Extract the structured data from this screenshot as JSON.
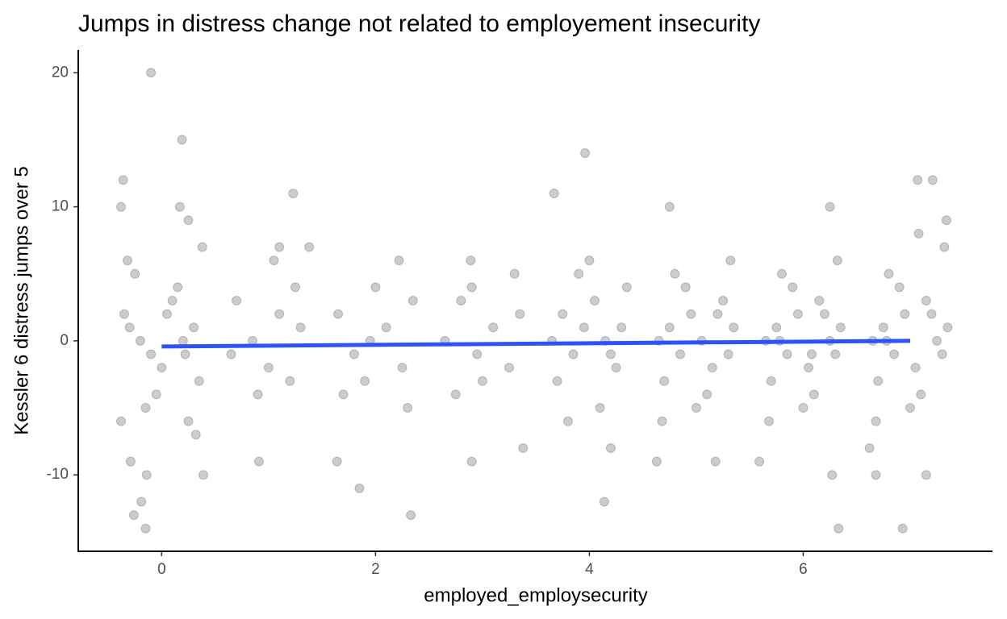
{
  "chart_data": {
    "type": "scatter",
    "title": "Jumps in distress change not related to employement insecurity",
    "x_label": "employed_employsecurity",
    "y_label": "Kessler 6 distress jumps over 5",
    "xlim": [
      -0.78,
      7.77
    ],
    "ylim": [
      -15.7,
      21.7
    ],
    "xticks": [
      0,
      2,
      4,
      6
    ],
    "yticks": [
      -10,
      0,
      10,
      20
    ],
    "color": "#000000",
    "alpha": 0.2,
    "x": [
      -0.1,
      0.19,
      -0.36,
      -0.38,
      0.17,
      0.25,
      -0.26,
      -0.15,
      -0.19,
      -0.14,
      0.39,
      -0.29,
      1.23,
      1.38,
      1.1,
      0.91,
      1.64,
      1.85,
      2.33,
      2.22,
      2.9,
      2.89,
      3.67,
      3.96,
      3.38,
      4.14,
      4.2,
      4.75,
      4.63,
      5.18,
      6.25,
      6.33,
      6.27,
      5.59,
      7.07,
      7.21,
      7.34,
      6.93,
      7.15,
      6.68,
      6.62,
      -0.35,
      -0.3,
      -0.2,
      -0.1,
      0.0,
      0.1,
      0.2,
      0.3,
      0.35,
      -0.25,
      -0.05,
      0.15,
      0.25,
      -0.38,
      0.38,
      -0.15,
      0.05,
      0.32,
      -0.32,
      0.22,
      0.7,
      0.85,
      1.0,
      1.1,
      1.2,
      1.3,
      0.9,
      1.05,
      1.25,
      0.65,
      1.65,
      1.8,
      1.95,
      2.1,
      2.25,
      2.35,
      1.7,
      2.0,
      2.3,
      1.9,
      2.65,
      2.8,
      2.95,
      3.1,
      3.25,
      3.35,
      2.75,
      3.0,
      3.3,
      2.9,
      3.65,
      3.75,
      3.85,
      3.95,
      4.05,
      4.15,
      4.25,
      4.35,
      3.7,
      3.9,
      4.1,
      4.3,
      3.8,
      4.0,
      4.2,
      4.65,
      4.75,
      4.85,
      4.95,
      5.05,
      5.15,
      5.25,
      5.35,
      4.7,
      4.9,
      5.1,
      5.3,
      4.8,
      5.0,
      5.2,
      4.68,
      5.32,
      5.65,
      5.75,
      5.85,
      5.95,
      6.05,
      6.15,
      6.25,
      6.35,
      5.7,
      5.9,
      6.1,
      6.3,
      5.8,
      6.0,
      6.2,
      5.68,
      6.32,
      5.78,
      6.08,
      6.65,
      6.75,
      6.85,
      6.95,
      7.05,
      7.15,
      7.25,
      7.35,
      6.7,
      6.9,
      7.1,
      7.3,
      6.8,
      7.0,
      7.2,
      6.68,
      7.32,
      6.78,
      7.08
    ],
    "values": [
      20,
      15,
      12,
      10,
      10,
      9,
      -13,
      -14,
      -12,
      -10,
      -10,
      -9,
      11,
      7,
      7,
      -9,
      -9,
      -11,
      -13,
      6,
      -9,
      6,
      11,
      14,
      -8,
      -12,
      -8,
      10,
      -9,
      -9,
      10,
      -14,
      -10,
      -9,
      12,
      12,
      9,
      -14,
      -10,
      -10,
      -8,
      2,
      1,
      0,
      -1,
      -2,
      3,
      0,
      1,
      -3,
      5,
      -4,
      4,
      -6,
      -6,
      7,
      -5,
      2,
      -7,
      6,
      -1,
      3,
      0,
      -2,
      2,
      -3,
      1,
      -4,
      6,
      4,
      -1,
      2,
      -1,
      0,
      1,
      -2,
      3,
      -4,
      4,
      -5,
      -3,
      0,
      3,
      -1,
      1,
      -2,
      2,
      -4,
      -3,
      5,
      4,
      0,
      2,
      -1,
      1,
      3,
      0,
      -2,
      4,
      -3,
      5,
      -5,
      1,
      -6,
      6,
      -1,
      0,
      1,
      -1,
      2,
      0,
      -2,
      3,
      1,
      -3,
      4,
      -4,
      -1,
      5,
      -5,
      2,
      -6,
      6,
      0,
      1,
      -1,
      2,
      -2,
      3,
      0,
      1,
      -3,
      4,
      -4,
      -1,
      5,
      -5,
      2,
      -6,
      6,
      0,
      -1,
      0,
      1,
      -1,
      2,
      -2,
      3,
      0,
      1,
      -3,
      4,
      -4,
      -1,
      5,
      -5,
      2,
      -6,
      7,
      0,
      8
    ],
    "trend": {
      "x": [
        0,
        7
      ],
      "values": [
        -0.42,
        0.0
      ],
      "color": "#3050f8"
    }
  }
}
